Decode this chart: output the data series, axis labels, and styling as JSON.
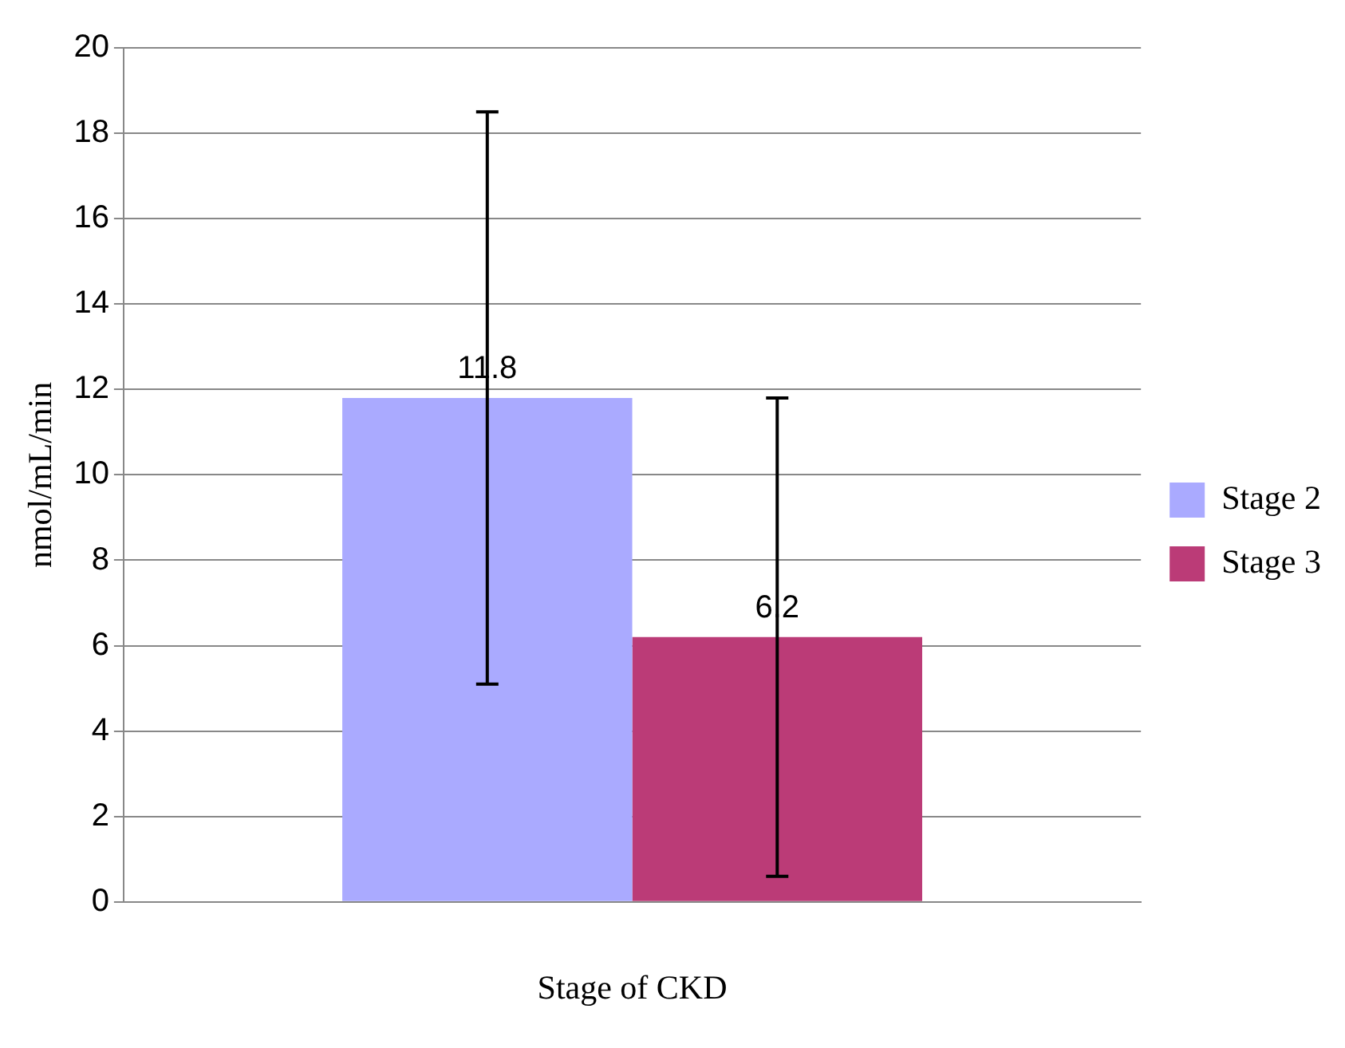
{
  "chart_data": {
    "type": "bar",
    "categories": [
      null
    ],
    "series": [
      {
        "name": "Stage 2",
        "color": "#aaaaff",
        "values": [
          11.8
        ],
        "errors": [
          6.7
        ]
      },
      {
        "name": "Stage 3",
        "color": "#bb3b77",
        "values": [
          6.2
        ],
        "errors": [
          5.6
        ]
      }
    ],
    "xlabel": "Stage of CKD",
    "ylabel": "nmol/mL/min",
    "ylim": [
      0,
      20
    ],
    "yticks": [
      0,
      2,
      4,
      6,
      8,
      10,
      12,
      14,
      16,
      18,
      20
    ],
    "grid": "y",
    "legend": "right",
    "data_labels": true
  }
}
